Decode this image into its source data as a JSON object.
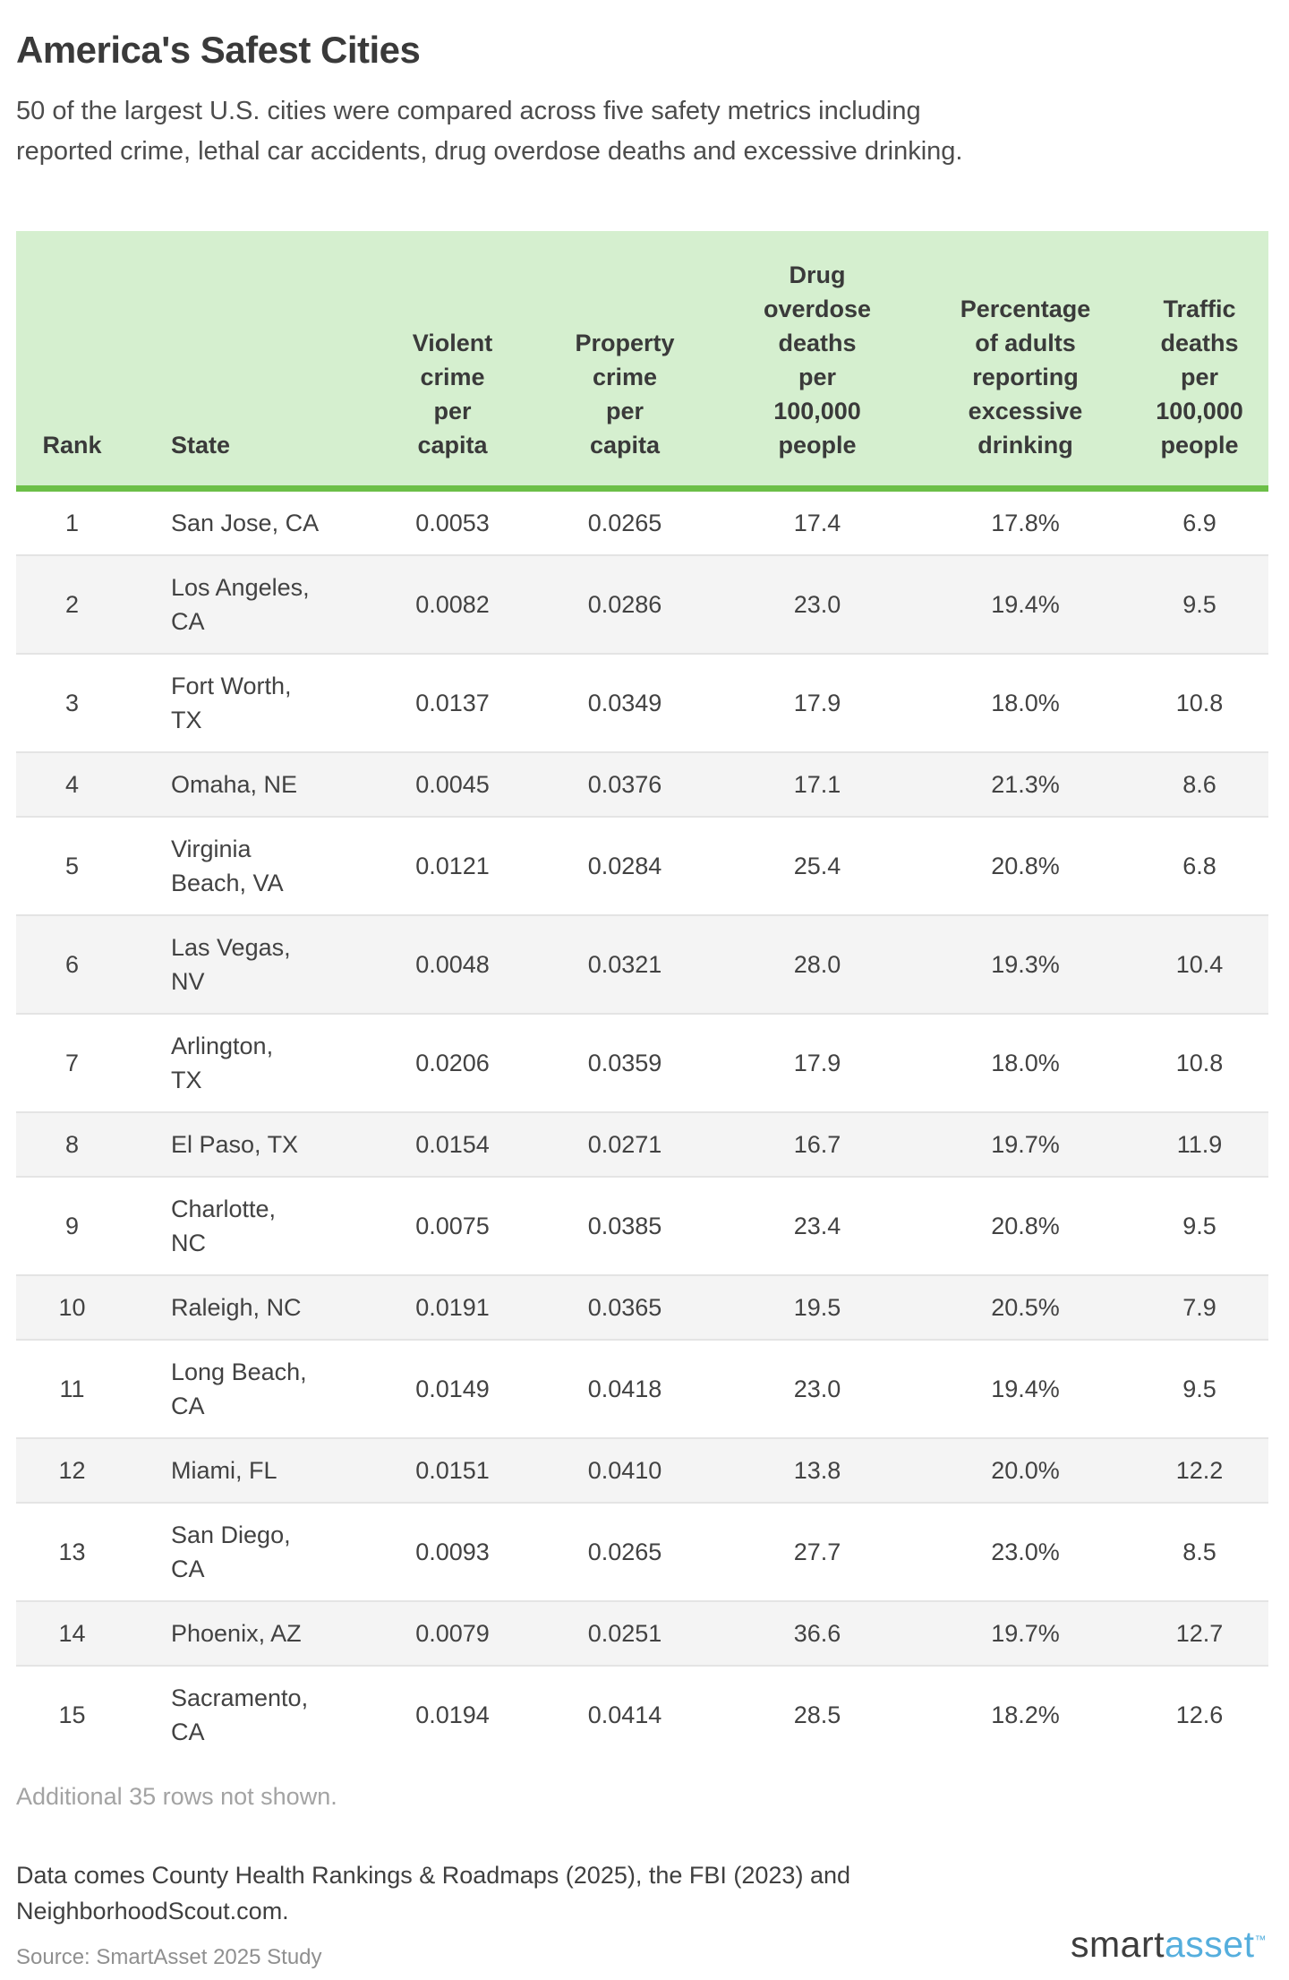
{
  "page": {
    "title": "America's Safest Cities",
    "subtitle": "50 of the largest U.S. cities were compared across five safety metrics including\nreported crime, lethal car accidents, drug overdose deaths and excessive drinking.",
    "additional_note": "Additional 35 rows not shown.",
    "data_note": "Data comes County Health Rankings & Roadmaps (2025), the FBI (2023) and\nNeighborhoodScout.com.",
    "source": "Source: SmartAsset 2025 Study",
    "logo": {
      "part1": "smart",
      "part2": "asset",
      "tm": "™"
    }
  },
  "colors": {
    "header_bg": "#d5efcf",
    "header_border_green": "#6cbf47",
    "row_alt_gray": "#f4f4f4",
    "row_separator": "#e4e4e4",
    "logo_blue": "#55aedd",
    "text_dark": "#3a3a3a",
    "muted_gray": "#a3a3a3"
  },
  "table": {
    "headers": [
      "Rank",
      "State",
      "Violent\ncrime\nper\ncapita",
      "Property\ncrime\nper\ncapita",
      "Drug\noverdose\ndeaths\nper\n100,000\npeople",
      "Percentage\nof adults\nreporting\nexcessive\ndrinking",
      "Traffic\ndeaths\nper\n100,000\npeople"
    ]
  },
  "chart_data": {
    "type": "table",
    "title": "America's Safest Cities",
    "columns": [
      "Rank",
      "State",
      "Violent crime per capita",
      "Property crime per capita",
      "Drug overdose deaths per 100,000 people",
      "Percentage of adults reporting excessive drinking",
      "Traffic deaths per 100,000 people"
    ],
    "rows": [
      [
        "1",
        "San Jose, CA",
        "0.0053",
        "0.0265",
        "17.4",
        "17.8%",
        "6.9"
      ],
      [
        "2",
        "Los Angeles,\nCA",
        "0.0082",
        "0.0286",
        "23.0",
        "19.4%",
        "9.5"
      ],
      [
        "3",
        "Fort Worth,\nTX",
        "0.0137",
        "0.0349",
        "17.9",
        "18.0%",
        "10.8"
      ],
      [
        "4",
        "Omaha, NE",
        "0.0045",
        "0.0376",
        "17.1",
        "21.3%",
        "8.6"
      ],
      [
        "5",
        "Virginia\nBeach, VA",
        "0.0121",
        "0.0284",
        "25.4",
        "20.8%",
        "6.8"
      ],
      [
        "6",
        "Las Vegas,\nNV",
        "0.0048",
        "0.0321",
        "28.0",
        "19.3%",
        "10.4"
      ],
      [
        "7",
        "Arlington,\nTX",
        "0.0206",
        "0.0359",
        "17.9",
        "18.0%",
        "10.8"
      ],
      [
        "8",
        "El Paso, TX",
        "0.0154",
        "0.0271",
        "16.7",
        "19.7%",
        "11.9"
      ],
      [
        "9",
        "Charlotte,\nNC",
        "0.0075",
        "0.0385",
        "23.4",
        "20.8%",
        "9.5"
      ],
      [
        "10",
        "Raleigh, NC",
        "0.0191",
        "0.0365",
        "19.5",
        "20.5%",
        "7.9"
      ],
      [
        "11",
        "Long Beach,\nCA",
        "0.0149",
        "0.0418",
        "23.0",
        "19.4%",
        "9.5"
      ],
      [
        "12",
        "Miami, FL",
        "0.0151",
        "0.0410",
        "13.8",
        "20.0%",
        "12.2"
      ],
      [
        "13",
        "San Diego,\nCA",
        "0.0093",
        "0.0265",
        "27.7",
        "23.0%",
        "8.5"
      ],
      [
        "14",
        "Phoenix, AZ",
        "0.0079",
        "0.0251",
        "36.6",
        "19.7%",
        "12.7"
      ],
      [
        "15",
        "Sacramento,\nCA",
        "0.0194",
        "0.0414",
        "28.5",
        "18.2%",
        "12.6"
      ]
    ]
  }
}
